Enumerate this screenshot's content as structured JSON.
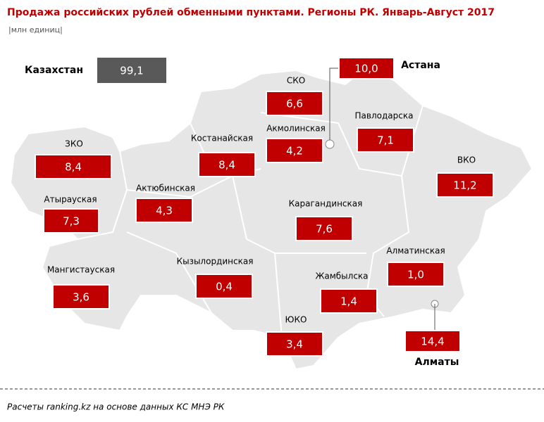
{
  "title": "Продажа российских рублей обменными пунктами. Регионы РК. Январь-Август 2017",
  "unit": "|млн единиц|",
  "total": {
    "name": "Казахстан",
    "value": "99,1"
  },
  "regions": [
    {
      "name": "ЗКО",
      "value": "8,4"
    },
    {
      "name": "Атырауская",
      "value": "7,3"
    },
    {
      "name": "Мангистауская",
      "value": "3,6"
    },
    {
      "name": "Актюбинская",
      "value": "4,3"
    },
    {
      "name": "Костанайская",
      "value": "8,4"
    },
    {
      "name": "Кызылординская",
      "value": "0,4"
    },
    {
      "name": "СКО",
      "value": "6,6"
    },
    {
      "name": "Акмолинская",
      "value": "4,2"
    },
    {
      "name": "Астана",
      "value": "10,0"
    },
    {
      "name": "Павлодарска",
      "value": "7,1"
    },
    {
      "name": "ВКО",
      "value": "11,2"
    },
    {
      "name": "Карагандинская",
      "value": "7,6"
    },
    {
      "name": "Алматинская",
      "value": "1,0"
    },
    {
      "name": "Жамбылска",
      "value": "1,4"
    },
    {
      "name": "ЮКО",
      "value": "3,4"
    },
    {
      "name": "Алматы",
      "value": "14,4"
    }
  ],
  "footer": "Расчеты ranking.kz  на основе данных  КС МНЭ РК"
}
